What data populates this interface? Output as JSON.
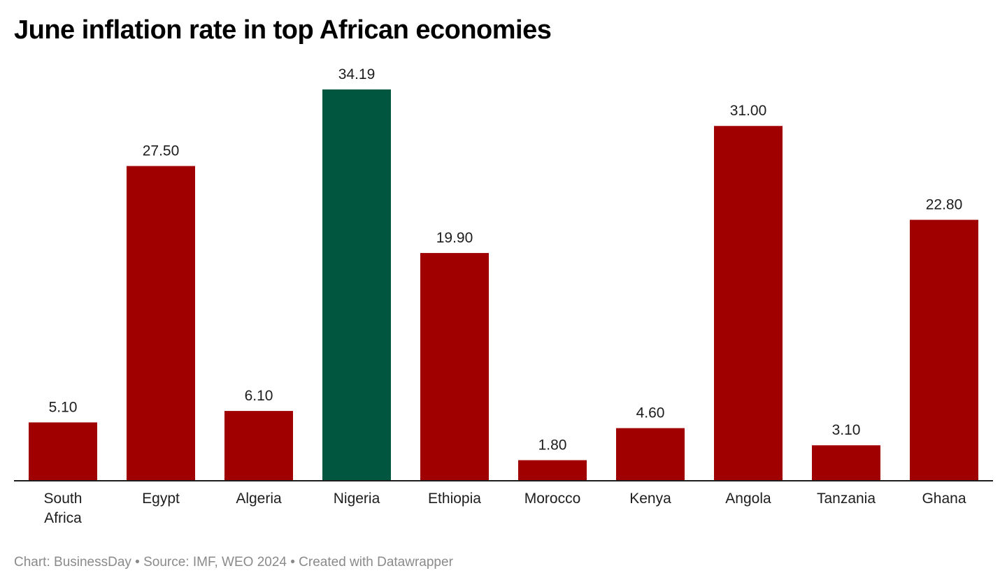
{
  "chart_data": {
    "type": "bar",
    "title": "June inflation rate in top African economies",
    "categories": [
      "South Africa",
      "Egypt",
      "Algeria",
      "Nigeria",
      "Ethiopia",
      "Morocco",
      "Kenya",
      "Angola",
      "Tanzania",
      "Ghana"
    ],
    "category_lines": [
      [
        "South",
        "Africa"
      ],
      [
        "Egypt"
      ],
      [
        "Algeria"
      ],
      [
        "Nigeria"
      ],
      [
        "Ethiopia"
      ],
      [
        "Morocco"
      ],
      [
        "Kenya"
      ],
      [
        "Angola"
      ],
      [
        "Tanzania"
      ],
      [
        "Ghana"
      ]
    ],
    "values": [
      5.1,
      27.5,
      6.1,
      34.19,
      19.9,
      1.8,
      4.6,
      31.0,
      3.1,
      22.8
    ],
    "value_labels": [
      "5.10",
      "27.50",
      "6.10",
      "34.19",
      "19.90",
      "1.80",
      "4.60",
      "31.00",
      "3.10",
      "22.80"
    ],
    "highlight": "Nigeria",
    "colors": {
      "default": "#a00000",
      "highlight": "#00563f"
    },
    "xlabel": "",
    "ylabel": "",
    "ylim": [
      0,
      34.19
    ],
    "grid": false
  },
  "footer": "Chart: BusinessDay • Source: IMF, WEO 2024 • Created with Datawrapper"
}
